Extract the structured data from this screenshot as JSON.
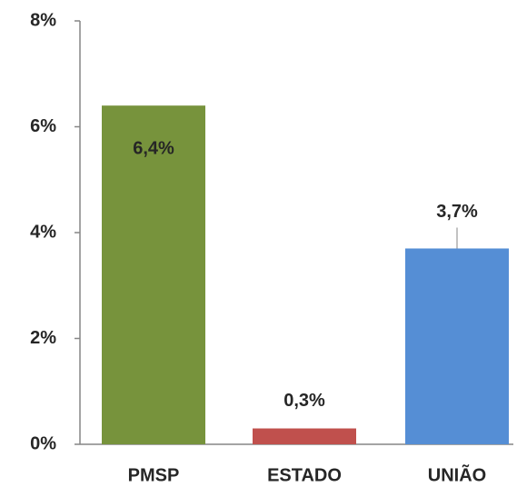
{
  "chart_data": {
    "type": "bar",
    "categories": [
      "PMSP",
      "ESTADO",
      "UNIÃO"
    ],
    "values": [
      6.4,
      0.3,
      3.7
    ],
    "value_labels": [
      "6,4%",
      "0,3%",
      "3,7%"
    ],
    "colors": [
      "#77933c",
      "#c0504d",
      "#558ed5"
    ],
    "ylim": [
      0,
      8
    ],
    "yticks": [
      {
        "value": 0,
        "label": "0%"
      },
      {
        "value": 2,
        "label": "2%"
      },
      {
        "value": 4,
        "label": "4%"
      },
      {
        "value": 6,
        "label": "6%"
      },
      {
        "value": 8,
        "label": "8%"
      }
    ],
    "grid": false
  }
}
